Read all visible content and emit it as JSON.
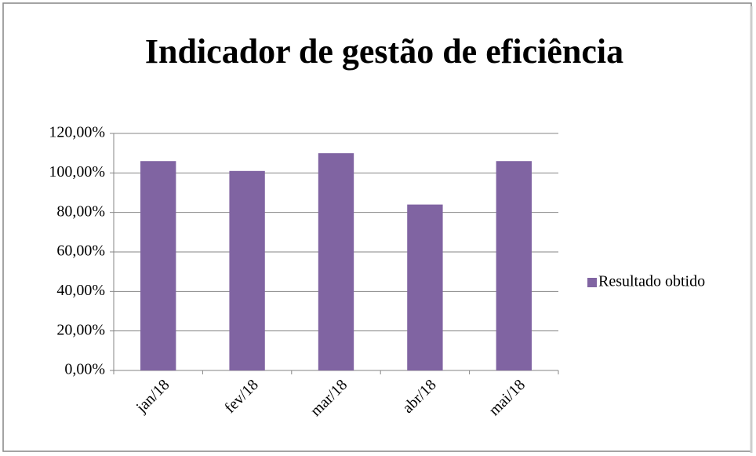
{
  "chart_data": {
    "type": "bar",
    "title": "Indicador de gestão de eficiência",
    "categories": [
      "jan/18",
      "fev/18",
      "mar/18",
      "abr/18",
      "mai/18"
    ],
    "series": [
      {
        "name": "Resultado obtido",
        "color": "#8064a2",
        "values": [
          106,
          101,
          110,
          84,
          106
        ]
      }
    ],
    "ylim": [
      0,
      120
    ],
    "yticks": [
      {
        "value": 0,
        "label": "0,00%"
      },
      {
        "value": 20,
        "label": "20,00%"
      },
      {
        "value": 40,
        "label": "40,00%"
      },
      {
        "value": 60,
        "label": "60,00%"
      },
      {
        "value": 80,
        "label": "80,00%"
      },
      {
        "value": 100,
        "label": "100,00%"
      },
      {
        "value": 120,
        "label": "120,00%"
      }
    ],
    "grid": true,
    "legend": "right"
  }
}
